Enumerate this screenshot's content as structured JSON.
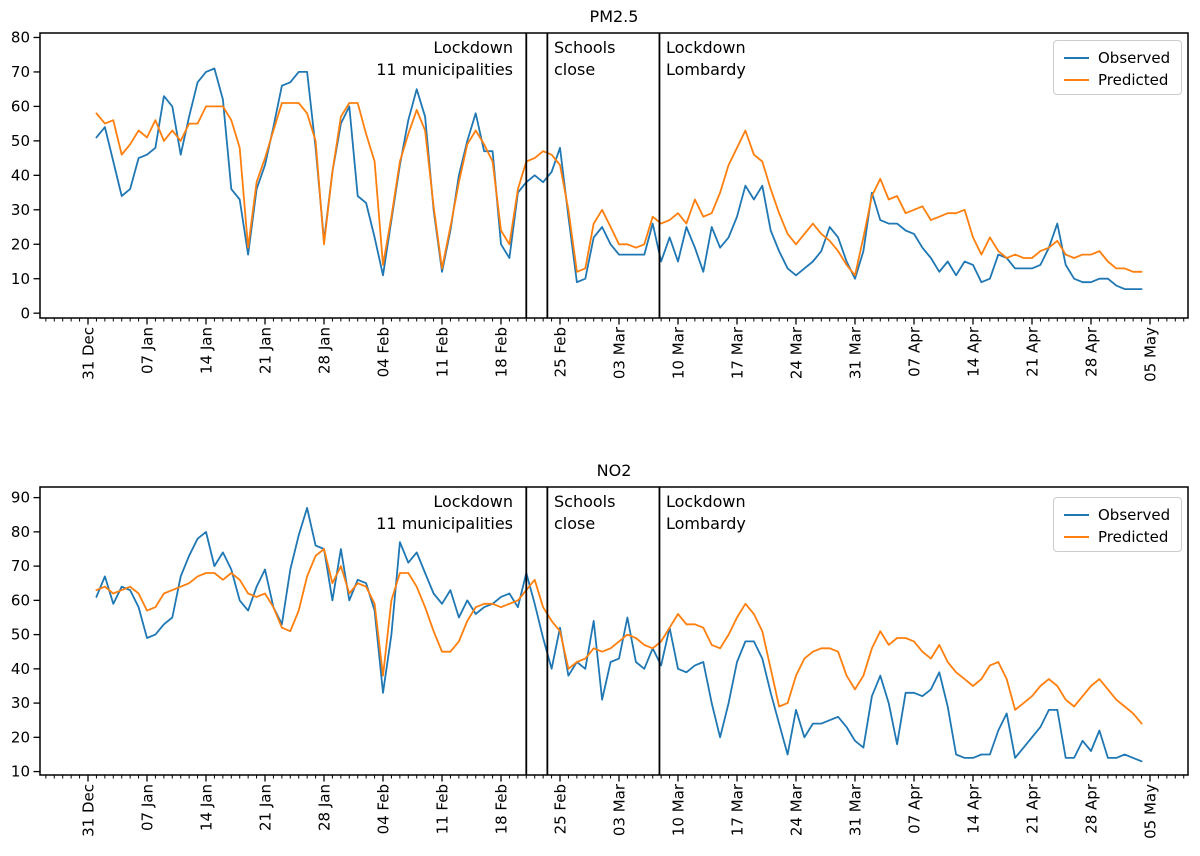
{
  "figure": {
    "background": "#ffffff"
  },
  "colors": {
    "observed": "#1f77b4",
    "predicted": "#ff7f0e",
    "event_line": "#000000",
    "axis": "#000000"
  },
  "legend": {
    "items": [
      {
        "label": "Observed",
        "series": "observed"
      },
      {
        "label": "Predicted",
        "series": "predicted"
      }
    ],
    "position": "upper right"
  },
  "x_axis": {
    "tick_labels": [
      "31 Dec",
      "07 Jan",
      "14 Jan",
      "21 Jan",
      "28 Jan",
      "04 Feb",
      "11 Feb",
      "18 Feb",
      "25 Feb",
      "03 Mar",
      "10 Mar",
      "17 Mar",
      "24 Mar",
      "31 Mar",
      "07 Apr",
      "14 Apr",
      "21 Apr",
      "28 Apr",
      "05 May"
    ],
    "tick_day_offsets": [
      -1,
      6,
      13,
      20,
      27,
      34,
      41,
      48,
      55,
      62,
      69,
      76,
      83,
      90,
      97,
      104,
      111,
      118,
      125
    ],
    "minor_tick_every_days": 1
  },
  "events": [
    {
      "day": 51,
      "date": "21 Feb",
      "line1": "Lockdown",
      "line2": "11 municipalities",
      "align": "right"
    },
    {
      "day": 53.5,
      "date": "24 Feb",
      "line1": "Schools",
      "line2": "close",
      "align": "left"
    },
    {
      "day": 66.8,
      "date": "08 Mar",
      "line1": "Lockdown",
      "line2": "Lombardy",
      "align": "left"
    }
  ],
  "chart_data": [
    {
      "type": "line",
      "title": "PM2.5",
      "x_start_date": "01 Jan 2020",
      "x_end_date": "04 May 2020",
      "frequency": "daily",
      "ylim": [
        -1.4,
        81.3
      ],
      "yticks": [
        0,
        10,
        20,
        30,
        40,
        50,
        60,
        70,
        80
      ],
      "grid": false,
      "legend_position": "upper right",
      "series": [
        {
          "name": "Observed",
          "color": "#1f77b4",
          "values": [
            51,
            54,
            44,
            34,
            36,
            45,
            46,
            48,
            63,
            60,
            46,
            57,
            67,
            70,
            71,
            62,
            36,
            33,
            17,
            36,
            43,
            54,
            66,
            67,
            70,
            70,
            48,
            21,
            41,
            55,
            60,
            34,
            32,
            22,
            11,
            27,
            43,
            56,
            65,
            57,
            30,
            12,
            24,
            40,
            50,
            58,
            47,
            47,
            20,
            16,
            35,
            38,
            40,
            38,
            41,
            48,
            28,
            9,
            10,
            22,
            25,
            20,
            17,
            17,
            17,
            17,
            26,
            15,
            22,
            15,
            25,
            19,
            12,
            25,
            19,
            22,
            28,
            37,
            33,
            37,
            24,
            18,
            13,
            11,
            13,
            15,
            18,
            25,
            22,
            15,
            10,
            18,
            35,
            27,
            26,
            26,
            24,
            23,
            19,
            16,
            12,
            15,
            11,
            15,
            14,
            9,
            10,
            17,
            16,
            13,
            13,
            13,
            14,
            19,
            26,
            14,
            10,
            9,
            9,
            10,
            10,
            8,
            7,
            7,
            7
          ]
        },
        {
          "name": "Predicted",
          "color": "#ff7f0e",
          "values": [
            58,
            55,
            56,
            46,
            49,
            53,
            51,
            56,
            50,
            53,
            50,
            55,
            55,
            60,
            60,
            60,
            56,
            48,
            19,
            38,
            45,
            53,
            61,
            61,
            61,
            58,
            50,
            20,
            41,
            57,
            61,
            61,
            52,
            44,
            14,
            28,
            44,
            52,
            59,
            53,
            31,
            13,
            25,
            38,
            49,
            53,
            49,
            44,
            24,
            20,
            36,
            44,
            45,
            47,
            46,
            43,
            30,
            12,
            13,
            26,
            30,
            25,
            20,
            20,
            19,
            20,
            28,
            26,
            27,
            29,
            26,
            33,
            28,
            29,
            35,
            43,
            48,
            53,
            46,
            44,
            36,
            29,
            23,
            20,
            23,
            26,
            23,
            21,
            18,
            14,
            11,
            22,
            34,
            39,
            33,
            34,
            29,
            30,
            31,
            27,
            28,
            29,
            29,
            30,
            22,
            17,
            22,
            18,
            16,
            17,
            16,
            16,
            18,
            19,
            21,
            17,
            16,
            17,
            17,
            18,
            15,
            13,
            13,
            12,
            12
          ]
        }
      ]
    },
    {
      "type": "line",
      "title": "NO2",
      "x_start_date": "01 Jan 2020",
      "x_end_date": "04 May 2020",
      "frequency": "daily",
      "ylim": [
        9.0,
        93.1
      ],
      "yticks": [
        10,
        20,
        30,
        40,
        50,
        60,
        70,
        80,
        90
      ],
      "grid": false,
      "legend_position": "upper right",
      "series": [
        {
          "name": "Observed",
          "color": "#1f77b4",
          "values": [
            61,
            67,
            59,
            64,
            63,
            58,
            49,
            50,
            53,
            55,
            67,
            73,
            78,
            80,
            70,
            74,
            69,
            60,
            57,
            64,
            69,
            58,
            53,
            69,
            79,
            87,
            76,
            75,
            60,
            75,
            60,
            66,
            65,
            57,
            33,
            50,
            77,
            71,
            74,
            68,
            62,
            59,
            63,
            55,
            60,
            56,
            58,
            59,
            61,
            62,
            58,
            68,
            59,
            49,
            40,
            52,
            38,
            42,
            40,
            54,
            31,
            42,
            43,
            55,
            42,
            40,
            46,
            41,
            52,
            40,
            39,
            41,
            42,
            30,
            20,
            30,
            42,
            48,
            48,
            43,
            33,
            24,
            15,
            28,
            20,
            24,
            24,
            25,
            26,
            23,
            19,
            17,
            32,
            38,
            30,
            18,
            33,
            33,
            32,
            34,
            39,
            29,
            15,
            14,
            14,
            15,
            15,
            22,
            27,
            14,
            17,
            20,
            23,
            28,
            28,
            14,
            14,
            19,
            16,
            22,
            14,
            14,
            15,
            14,
            13
          ]
        },
        {
          "name": "Predicted",
          "color": "#ff7f0e",
          "values": [
            63,
            64,
            62,
            63,
            64,
            62,
            57,
            58,
            62,
            63,
            64,
            65,
            67,
            68,
            68,
            66,
            68,
            66,
            62,
            61,
            62,
            58,
            52,
            51,
            57,
            67,
            73,
            75,
            65,
            70,
            62,
            65,
            64,
            59,
            38,
            60,
            68,
            68,
            64,
            58,
            51,
            45,
            45,
            48,
            54,
            58,
            59,
            59,
            58,
            59,
            60,
            63,
            66,
            58,
            54,
            51,
            40,
            42,
            43,
            46,
            45,
            46,
            48,
            50,
            49,
            47,
            46,
            48,
            52,
            56,
            53,
            53,
            52,
            47,
            46,
            50,
            55,
            59,
            56,
            51,
            40,
            29,
            30,
            38,
            43,
            45,
            46,
            46,
            45,
            38,
            34,
            38,
            46,
            51,
            47,
            49,
            49,
            48,
            45,
            43,
            47,
            42,
            39,
            37,
            35,
            37,
            41,
            42,
            37,
            28,
            30,
            32,
            35,
            37,
            35,
            31,
            29,
            32,
            35,
            37,
            34,
            31,
            29,
            27,
            24
          ]
        }
      ]
    }
  ]
}
